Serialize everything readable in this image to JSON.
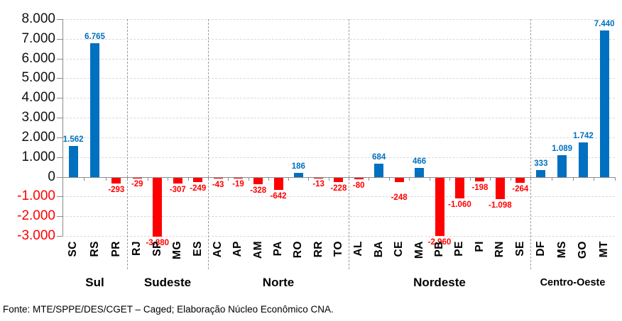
{
  "chart_data": {
    "type": "bar",
    "title": "",
    "xlabel": "",
    "ylabel": "",
    "ylim": [
      -3000,
      8000
    ],
    "ytick_step": 1000,
    "ytick_labels": [
      "8.000",
      "7.000",
      "6.000",
      "5.000",
      "4.000",
      "3.000",
      "2.000",
      "1.000",
      "0",
      "-1.000",
      "-2.000",
      "-3.000"
    ],
    "grid": "horizontal-dashed",
    "legend": "none",
    "bars_clipped_at_axis_min": [
      "SP"
    ],
    "groups": [
      {
        "region": "Sul",
        "points": [
          {
            "state": "SC",
            "value": 1562,
            "label": "1.562"
          },
          {
            "state": "RS",
            "value": 6765,
            "label": "6.765"
          },
          {
            "state": "PR",
            "value": -293,
            "label": "-293"
          }
        ]
      },
      {
        "region": "Sudeste",
        "points": [
          {
            "state": "RJ",
            "value": -29,
            "label": "-29"
          },
          {
            "state": "SP",
            "value": -3880,
            "label": "-3.880"
          },
          {
            "state": "MG",
            "value": -307,
            "label": "-307"
          },
          {
            "state": "ES",
            "value": -249,
            "label": "-249"
          }
        ]
      },
      {
        "region": "Norte",
        "points": [
          {
            "state": "AC",
            "value": -43,
            "label": "-43"
          },
          {
            "state": "AP",
            "value": -19,
            "label": "-19"
          },
          {
            "state": "AM",
            "value": -328,
            "label": "-328"
          },
          {
            "state": "PA",
            "value": -642,
            "label": "-642"
          },
          {
            "state": "RO",
            "value": 186,
            "label": "186"
          },
          {
            "state": "RR",
            "value": -13,
            "label": "-13"
          },
          {
            "state": "TO",
            "value": -228,
            "label": "-228"
          }
        ]
      },
      {
        "region": "Nordeste",
        "points": [
          {
            "state": "AL",
            "value": -80,
            "label": "-80"
          },
          {
            "state": "BA",
            "value": 684,
            "label": "684"
          },
          {
            "state": "CE",
            "value": -248,
            "label": "-248"
          },
          {
            "state": "MA",
            "value": 466,
            "label": "466"
          },
          {
            "state": "PB",
            "value": -2960,
            "label": "-2.960"
          },
          {
            "state": "PE",
            "value": -1060,
            "label": "-1.060"
          },
          {
            "state": "PI",
            "value": -198,
            "label": "-198"
          },
          {
            "state": "RN",
            "value": -1098,
            "label": "-1.098"
          },
          {
            "state": "SE",
            "value": -264,
            "label": "-264"
          }
        ]
      },
      {
        "region": "Centro-Oeste",
        "points": [
          {
            "state": "DF",
            "value": 333,
            "label": "333"
          },
          {
            "state": "MS",
            "value": 1089,
            "label": "1.089"
          },
          {
            "state": "GO",
            "value": 1742,
            "label": "1.742"
          },
          {
            "state": "MT",
            "value": 7440,
            "label": "7.440"
          }
        ]
      }
    ],
    "colors": {
      "positive_bar": "#0070C0",
      "negative_bar": "#FF0000",
      "positive_value_text": "#0070C0",
      "negative_value_text": "#FF0000",
      "positive_tick_text": "#111111",
      "negative_tick_text": "#FF0000",
      "gridline": "#D9D9D9",
      "axis": "#8C8C8C",
      "separator": "#9B9B9B"
    }
  },
  "footer": {
    "source": "Fonte: MTE/SPPE/DES/CGET – Caged; Elaboração Núcleo Econômico CNA."
  }
}
